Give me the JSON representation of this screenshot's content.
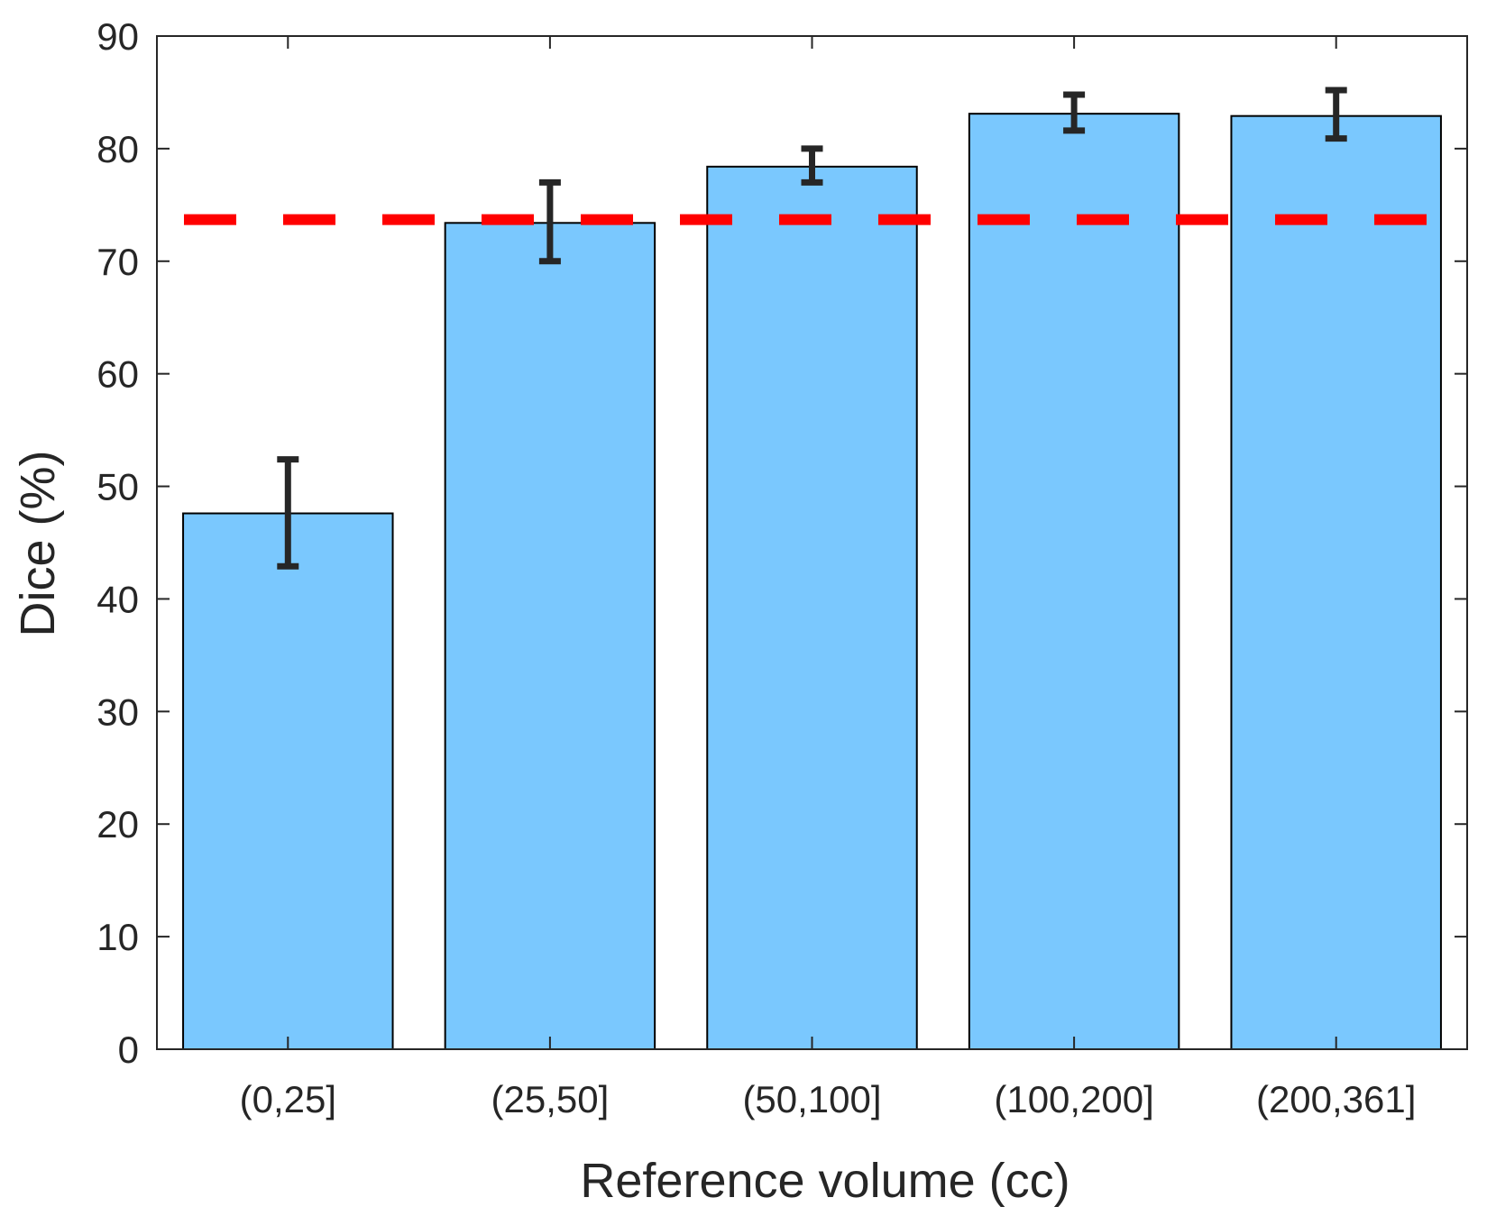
{
  "chart_data": {
    "type": "bar",
    "title": "",
    "xlabel": "Reference volume (cc)",
    "ylabel": "Dice (%)",
    "categories": [
      "(0,25]",
      "(25,50]",
      "(50,100]",
      "(100,200]",
      "(200,361]"
    ],
    "values": [
      47.6,
      73.4,
      78.4,
      83.1,
      82.9
    ],
    "error_low": [
      42.9,
      70.0,
      77.0,
      81.6,
      80.9
    ],
    "error_high": [
      52.4,
      77.0,
      80.0,
      84.8,
      85.2
    ],
    "reference_line": {
      "value": 73.7,
      "style": "dashed",
      "color": "#ff0000"
    },
    "ylim": [
      0,
      90
    ],
    "yticks": [
      "0",
      "10",
      "20",
      "30",
      "40",
      "50",
      "60",
      "70",
      "80",
      "90"
    ],
    "grid": false,
    "bar_color": "#7ac8fe",
    "bar_edge_color": "#000000",
    "errorbar_color": "#262626"
  }
}
